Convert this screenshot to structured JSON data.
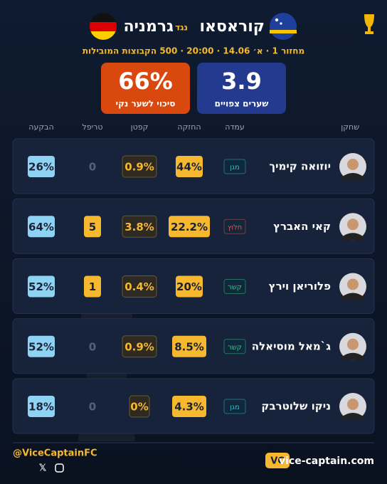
{
  "header": {
    "team_home": "קוראסאו",
    "vs": "נגד",
    "team_away": "גרמניה",
    "meta": "מחזור 1 · א׳ 14.06 · 20:00 · 500 הקבוצות המובילות"
  },
  "stats": [
    {
      "value": "3.9",
      "label": "שערים צפויים",
      "color": "#233a8f"
    },
    {
      "value": "66%",
      "label": "סיכוי לשער נקי",
      "color": "#d9480f"
    }
  ],
  "columns": [
    "שחקן",
    "עמדה",
    "החזקה",
    "קפטן",
    "טריפל",
    "הבקעה"
  ],
  "players": [
    {
      "name": "יוזואה קימיך",
      "position": "מגן",
      "position_color": "#38b2c8",
      "ownership": "44%",
      "captain": "0.9%",
      "triple": "0",
      "scoring": "26%"
    },
    {
      "name": "קאי האברץ",
      "position": "חלוץ",
      "position_color": "#e0505a",
      "ownership": "22.2%",
      "captain": "3.8%",
      "triple": "5",
      "scoring": "64%"
    },
    {
      "name": "פלוריאן וירץ",
      "position": "קשר",
      "position_color": "#3cc08a",
      "ownership": "20%",
      "captain": "0.4%",
      "triple": "1",
      "scoring": "52%"
    },
    {
      "name": "ג`מאל מוסיאלה",
      "position": "קשר",
      "position_color": "#3cc08a",
      "ownership": "8.5%",
      "captain": "0.9%",
      "triple": "0",
      "scoring": "52%"
    },
    {
      "name": "ניקו שלוטרבק",
      "position": "מגן",
      "position_color": "#38b2c8",
      "ownership": "4.3%",
      "captain": "0%",
      "triple": "0",
      "scoring": "18%"
    }
  ],
  "footer": {
    "handle": "@ViceCaptainFC",
    "logo": "VC",
    "site": "vice-captain.com"
  }
}
